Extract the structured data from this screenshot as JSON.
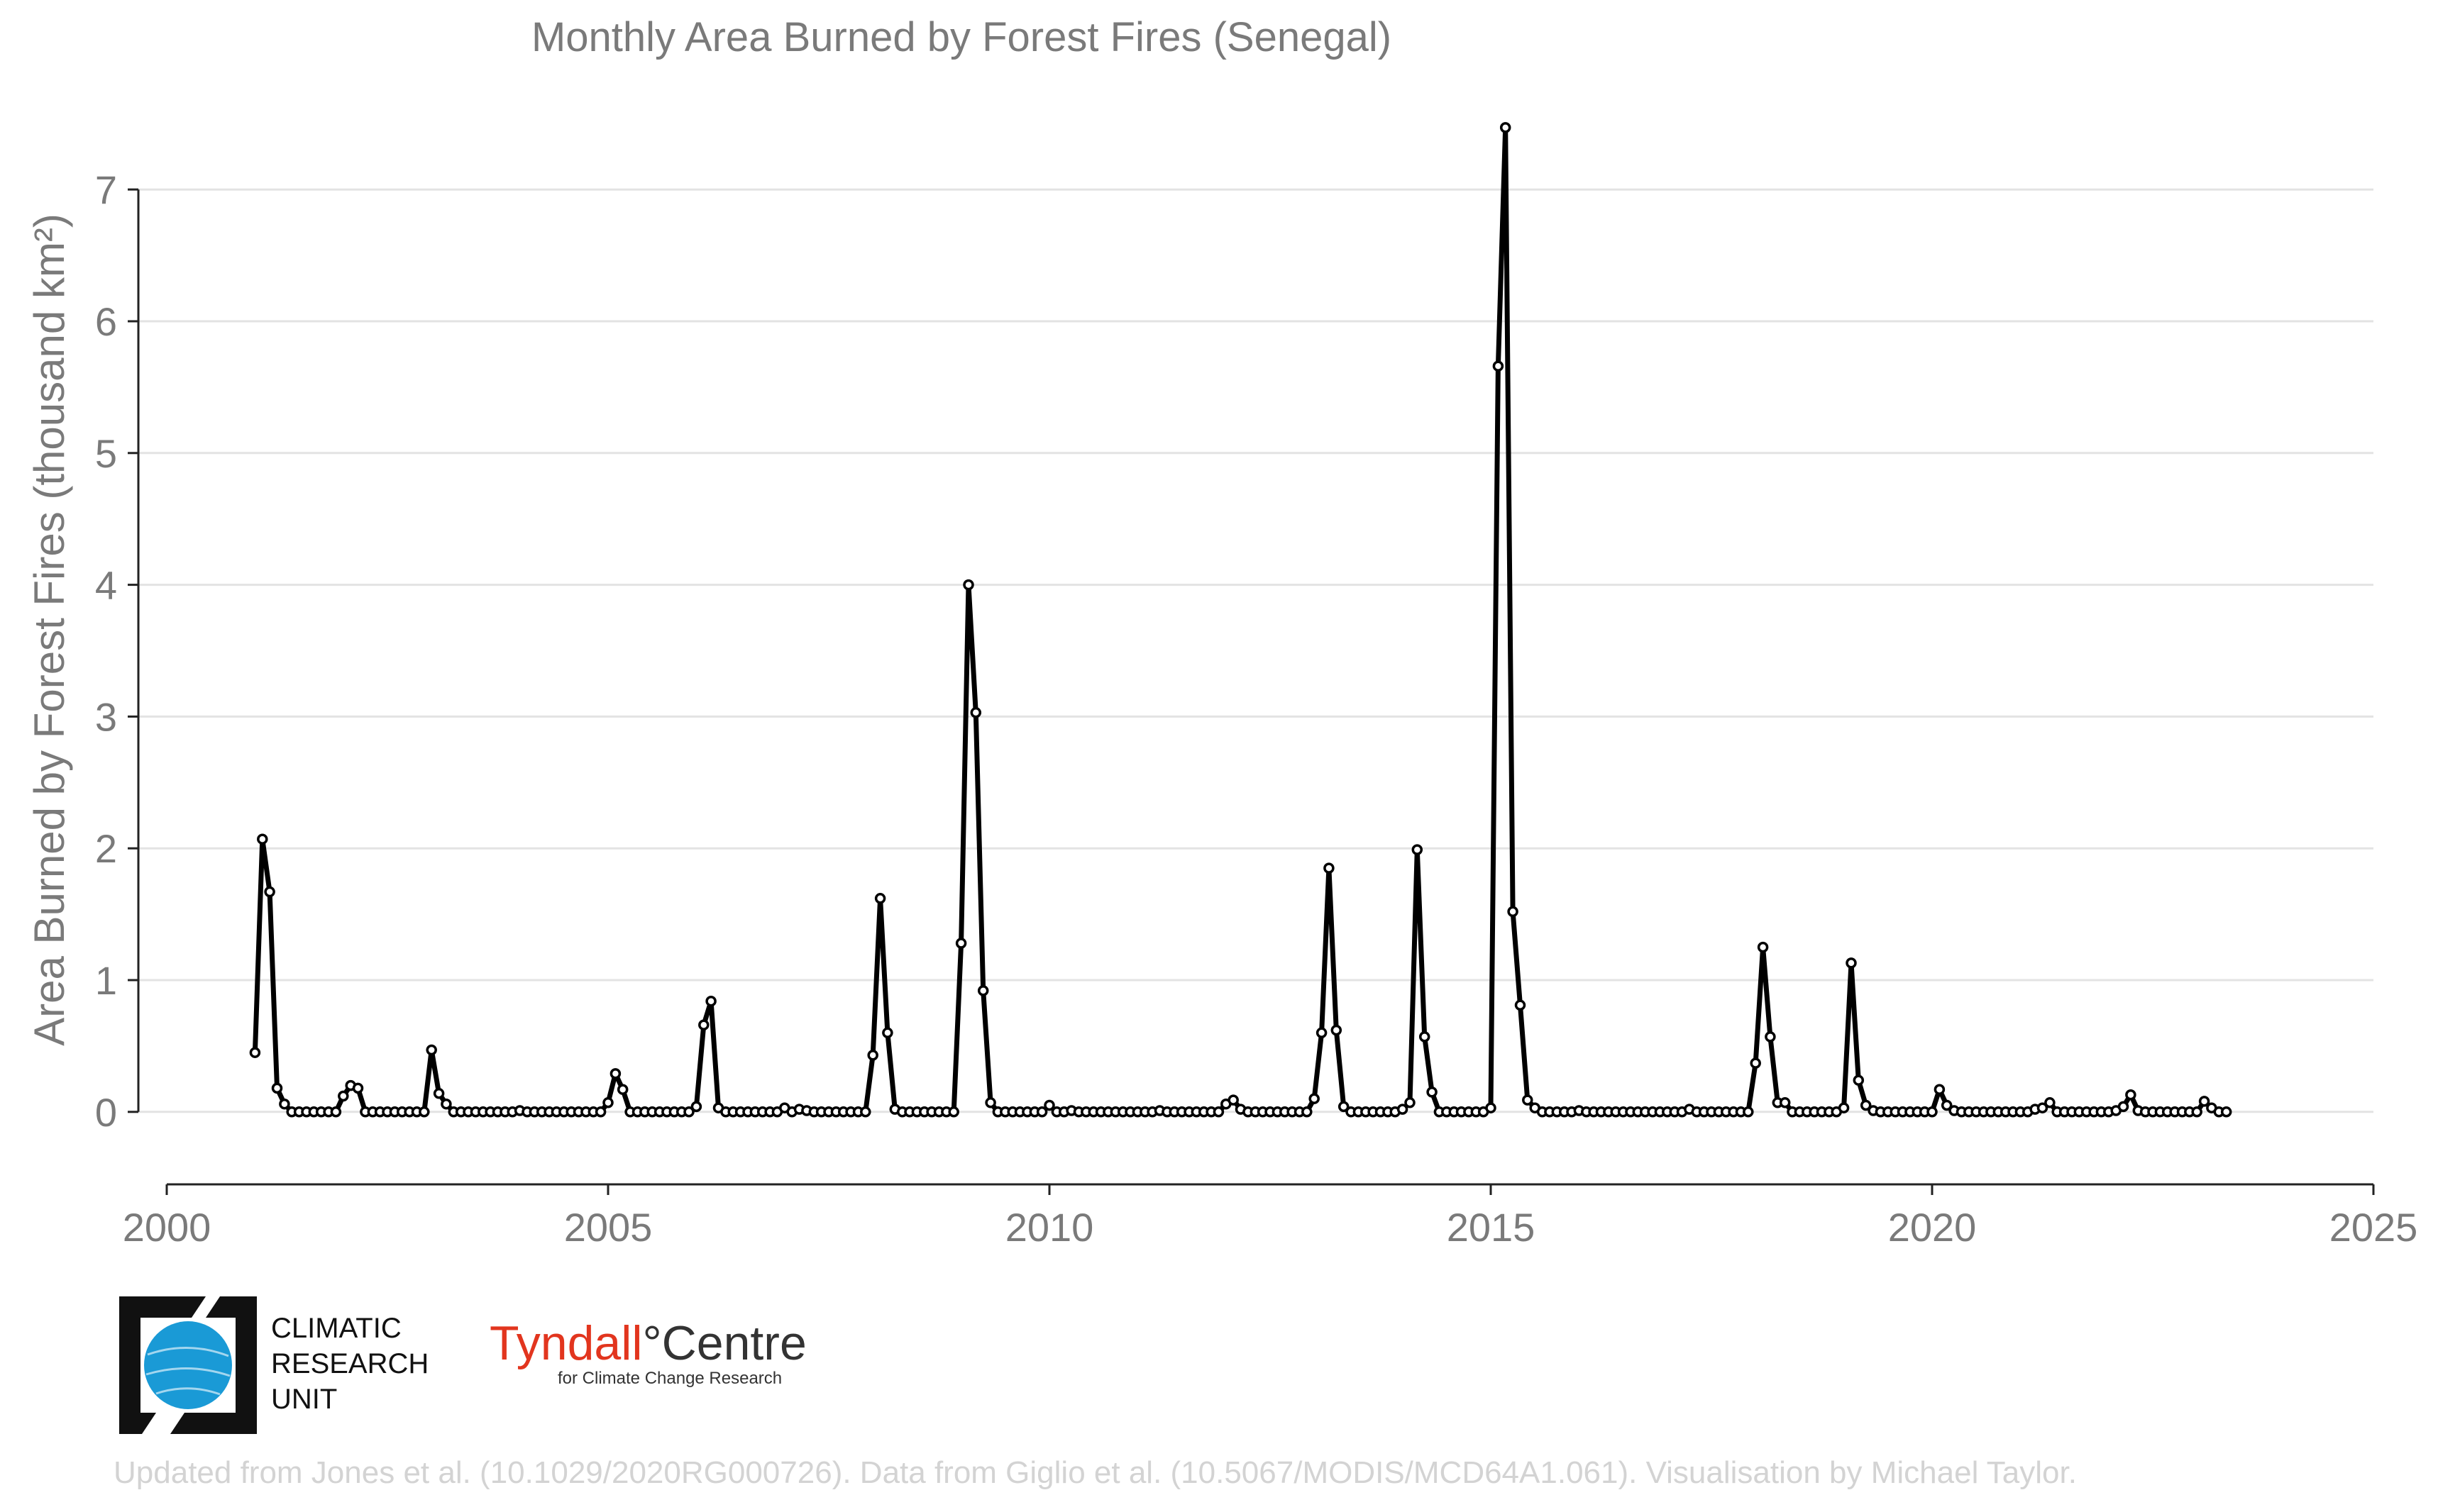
{
  "chart_data": {
    "type": "line",
    "title": "Monthly Area Burned by Forest Fires (Senegal)",
    "ylabel": "Area Burned by Forest Fires (thousand km²)",
    "xlabel": "",
    "xlim": [
      2000,
      2025
    ],
    "ylim": [
      -0.55,
      7.55
    ],
    "x_ticks": [
      "2000",
      "2005",
      "2010",
      "2015",
      "2020",
      "2025"
    ],
    "y_ticks": [
      "0",
      "1",
      "2",
      "3",
      "4",
      "5",
      "6",
      "7"
    ],
    "grid": "horizontal",
    "markers": true,
    "start": "2001-01",
    "series": [
      {
        "values": [
          0.45,
          2.07,
          1.67,
          0.18,
          0.06,
          0,
          0,
          0,
          0,
          0,
          0,
          0,
          0.12,
          0.2,
          0.18,
          0,
          0,
          0,
          0,
          0,
          0,
          0,
          0,
          0,
          0.47,
          0.14,
          0.06,
          0,
          0,
          0,
          0,
          0,
          0,
          0,
          0,
          0,
          0.01,
          0,
          0,
          0,
          0,
          0,
          0,
          0,
          0,
          0,
          0,
          0,
          0.07,
          0.29,
          0.17,
          0,
          0,
          0,
          0,
          0,
          0,
          0,
          0,
          0,
          0.04,
          0.66,
          0.84,
          0.03,
          0,
          0,
          0,
          0,
          0,
          0,
          0,
          0,
          0.03,
          0,
          0.02,
          0.01,
          0,
          0,
          0,
          0,
          0,
          0,
          0,
          0,
          0.43,
          1.62,
          0.6,
          0.02,
          0,
          0,
          0,
          0,
          0,
          0,
          0,
          0,
          1.28,
          4.0,
          3.03,
          0.92,
          0.07,
          0,
          0,
          0,
          0,
          0,
          0,
          0,
          0.05,
          0,
          0,
          0.01,
          0,
          0,
          0,
          0,
          0,
          0,
          0,
          0,
          0,
          0,
          0,
          0.01,
          0,
          0,
          0,
          0,
          0,
          0,
          0,
          0,
          0.06,
          0.09,
          0.02,
          0,
          0,
          0,
          0,
          0,
          0,
          0,
          0,
          0,
          0.1,
          0.6,
          1.85,
          0.62,
          0.04,
          0,
          0,
          0,
          0,
          0,
          0,
          0,
          0.02,
          0.07,
          1.99,
          0.57,
          0.15,
          0,
          0,
          0,
          0,
          0,
          0,
          0,
          0.03,
          5.66,
          7.47,
          1.52,
          0.81,
          0.09,
          0.03,
          0,
          0,
          0,
          0,
          0,
          0.01,
          0,
          0,
          0,
          0,
          0,
          0,
          0,
          0,
          0,
          0,
          0,
          0,
          0,
          0,
          0.02,
          0,
          0,
          0,
          0,
          0,
          0,
          0,
          0,
          0.37,
          1.25,
          0.57,
          0.07,
          0.07,
          0,
          0,
          0,
          0,
          0,
          0,
          0,
          0.03,
          1.13,
          0.24,
          0.05,
          0.01,
          0,
          0,
          0,
          0,
          0,
          0,
          0,
          0,
          0.17,
          0.05,
          0.01,
          0,
          0,
          0,
          0,
          0,
          0,
          0,
          0,
          0,
          0,
          0.02,
          0.03,
          0.07,
          0,
          0,
          0,
          0,
          0,
          0,
          0,
          0,
          0.01,
          0.04,
          0.13,
          0.01,
          0,
          0,
          0,
          0,
          0,
          0,
          0,
          0,
          0.08,
          0.03,
          0,
          0
        ]
      }
    ]
  },
  "logos": {
    "cru_lines": [
      "CLIMATIC",
      "RESEARCH",
      "UNIT"
    ],
    "tyndall_part1": "Tyndall",
    "tyndall_degree": "°",
    "tyndall_part2": "Centre",
    "tyndall_sub": "for Climate Change Research"
  },
  "credit": "Updated from Jones et al. (10.1029/2020RG000726). Data from Giglio et al. (10.5067/MODIS/MCD64A1.061). Visualisation by Michael Taylor.",
  "colors": {
    "line": "#000000",
    "marker_fill": "#ffffff",
    "text": "#7a7a7a",
    "grid": "#e3e3e3",
    "cru_blue": "#1a9ad6",
    "tyndall_red": "#e2351e"
  }
}
